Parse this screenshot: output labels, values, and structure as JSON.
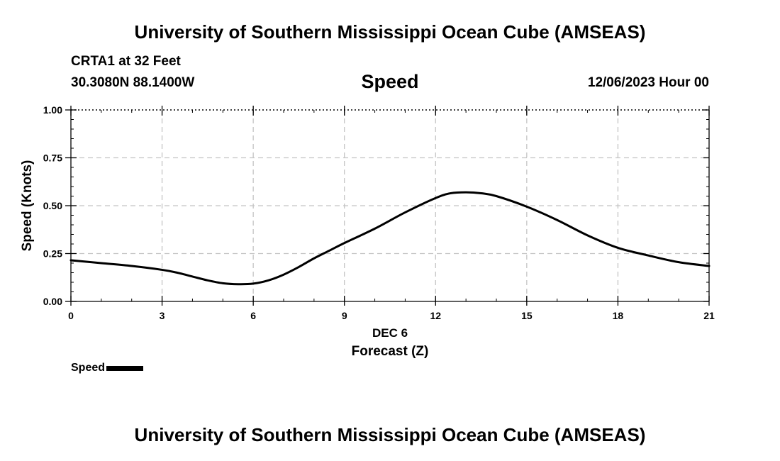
{
  "header": {
    "title": "University of Southern Mississippi Ocean Cube (AMSEAS)",
    "station": "CRTA1 at 32 Feet",
    "coords": "30.3080N  88.1400W",
    "chart_title": "Speed",
    "timestamp": "12/06/2023 Hour 00"
  },
  "footer": {
    "title": "University of Southern Mississippi Ocean Cube (AMSEAS)"
  },
  "legend": {
    "label": "Speed"
  },
  "chart_data": {
    "type": "line",
    "title": "Speed",
    "xlabel": "Forecast (Z)",
    "date_label": "DEC 6",
    "ylabel": "Speed (Knots)",
    "xlim": [
      0,
      21
    ],
    "ylim": [
      0,
      1
    ],
    "x_ticks": [
      0,
      3,
      6,
      9,
      12,
      15,
      18,
      21
    ],
    "x_tick_labels": [
      "0",
      "3",
      "6",
      "9",
      "12",
      "15",
      "18",
      "21"
    ],
    "y_ticks": [
      0,
      0.25,
      0.5,
      0.75,
      1.0
    ],
    "y_tick_labels": [
      "0.00",
      "0.25",
      "0.50",
      "0.75",
      "1.00"
    ],
    "grid": true,
    "legend_position": "bottom-left",
    "series": [
      {
        "name": "Speed",
        "color": "#000000",
        "x": [
          0,
          1,
          2,
          3,
          3.5,
          4,
          4.5,
          5,
          5.5,
          6,
          6.5,
          7,
          7.5,
          8,
          8.5,
          9,
          10,
          11,
          12,
          12.5,
          13,
          13.5,
          14,
          15,
          16,
          17,
          18,
          19,
          20,
          21
        ],
        "values": [
          0.215,
          0.2,
          0.185,
          0.165,
          0.15,
          0.13,
          0.11,
          0.095,
          0.09,
          0.093,
          0.11,
          0.14,
          0.18,
          0.225,
          0.265,
          0.305,
          0.38,
          0.465,
          0.54,
          0.565,
          0.57,
          0.565,
          0.55,
          0.495,
          0.425,
          0.345,
          0.28,
          0.24,
          0.205,
          0.185
        ]
      }
    ]
  }
}
